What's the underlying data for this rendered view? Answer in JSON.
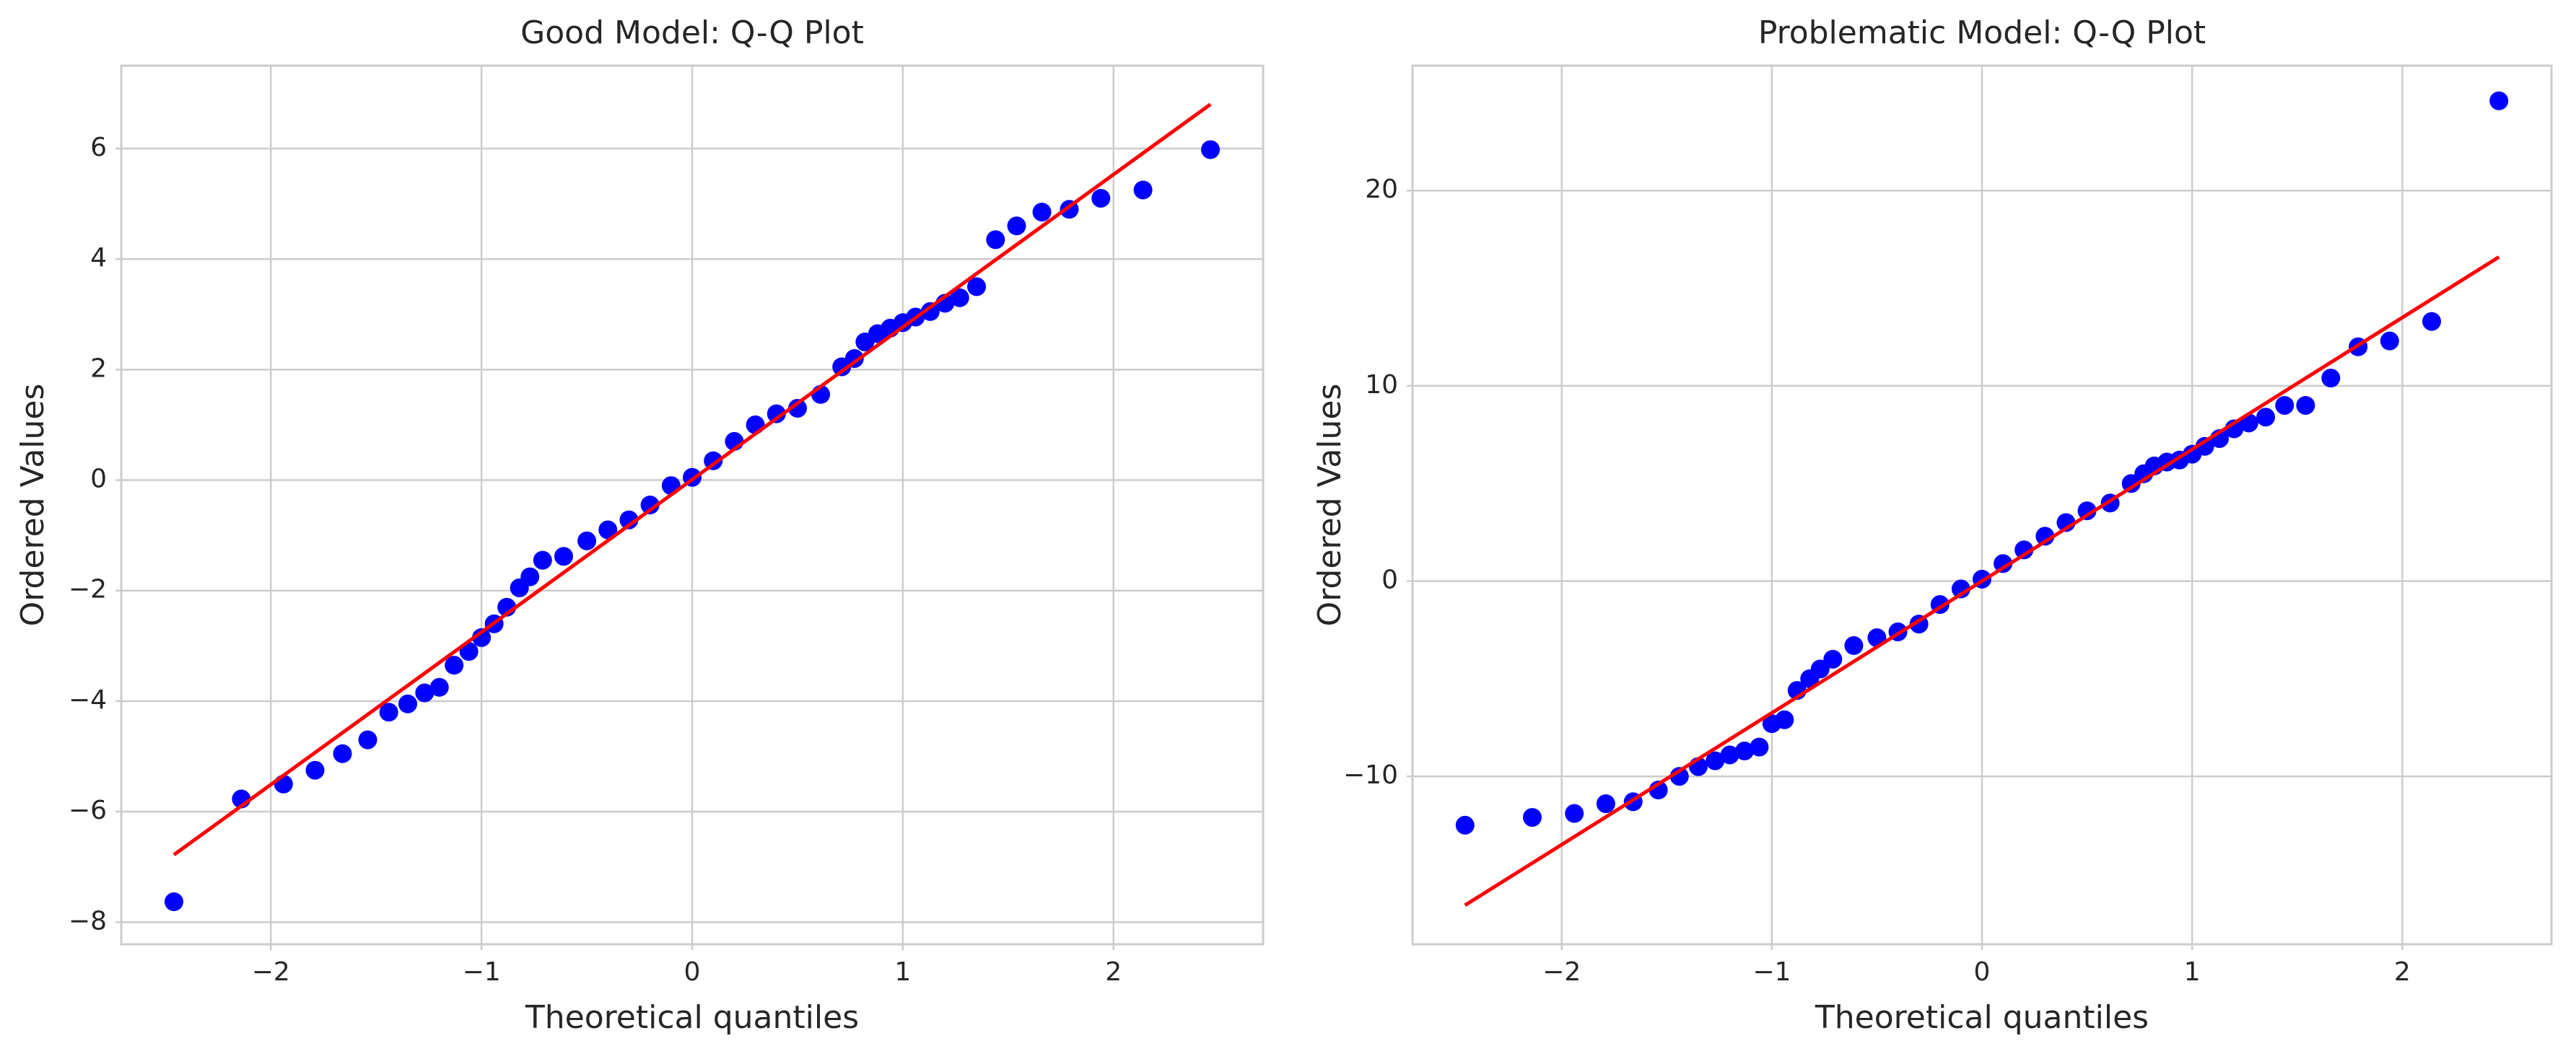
{
  "chart_data": [
    {
      "type": "scatter",
      "title": "Good Model: Q-Q Plot",
      "x_label": "Theoretical quantiles",
      "y_label": "Ordered Values",
      "x": [
        -2.46,
        -2.14,
        -1.94,
        -1.79,
        -1.66,
        -1.54,
        -1.44,
        -1.35,
        -1.27,
        -1.2,
        -1.13,
        -1.06,
        -1.0,
        -0.94,
        -0.88,
        -0.82,
        -0.77,
        -0.71,
        -0.61,
        -0.5,
        -0.4,
        -0.3,
        -0.2,
        -0.1,
        0,
        0.1,
        0.2,
        0.3,
        0.4,
        0.5,
        0.61,
        0.71,
        0.77,
        0.82,
        0.88,
        0.94,
        1.0,
        1.06,
        1.13,
        1.2,
        1.27,
        1.35,
        1.44,
        1.54,
        1.66,
        1.79,
        1.94,
        2.14,
        2.46
      ],
      "points": {
        "color": "#0000ff",
        "values": [
          -7.63,
          -5.77,
          -5.5,
          -5.25,
          -4.95,
          -4.7,
          -4.2,
          -4.05,
          -3.85,
          -3.75,
          -3.35,
          -3.1,
          -2.85,
          -2.6,
          -2.3,
          -1.95,
          -1.75,
          -1.45,
          -1.38,
          -1.1,
          -0.9,
          -0.72,
          -0.45,
          -0.1,
          0.05,
          0.35,
          0.7,
          1.0,
          1.2,
          1.3,
          1.55,
          2.05,
          2.2,
          2.5,
          2.65,
          2.75,
          2.85,
          2.95,
          3.05,
          3.2,
          3.3,
          3.5,
          4.35,
          4.6,
          4.85,
          4.9,
          5.1,
          5.25,
          5.98
        ]
      },
      "fit_line": {
        "color": "#ff0000",
        "x": [
          -2.46,
          2.46
        ],
        "values": [
          -6.78,
          6.8
        ]
      },
      "xlim": [
        -2.71,
        2.71
      ],
      "ylim": [
        -8.4,
        7.5
      ],
      "xticks": [
        {
          "value": -2,
          "label": "−2"
        },
        {
          "value": -1,
          "label": "−1"
        },
        0,
        1,
        2
      ],
      "yticks": [
        {
          "value": -8,
          "label": "−8"
        },
        {
          "value": -6,
          "label": "−6"
        },
        {
          "value": -4,
          "label": "−4"
        },
        {
          "value": -2,
          "label": "−2"
        },
        0,
        2,
        4,
        6
      ],
      "grid": true
    },
    {
      "type": "scatter",
      "title": "Problematic Model: Q-Q Plot",
      "x_label": "Theoretical quantiles",
      "y_label": "Ordered Values",
      "x": [
        -2.46,
        -2.14,
        -1.94,
        -1.79,
        -1.66,
        -1.54,
        -1.44,
        -1.35,
        -1.27,
        -1.2,
        -1.13,
        -1.06,
        -1.0,
        -0.94,
        -0.88,
        -0.82,
        -0.77,
        -0.71,
        -0.61,
        -0.5,
        -0.4,
        -0.3,
        -0.2,
        -0.1,
        0,
        0.1,
        0.2,
        0.3,
        0.4,
        0.5,
        0.61,
        0.71,
        0.77,
        0.82,
        0.88,
        0.94,
        1.0,
        1.06,
        1.13,
        1.2,
        1.27,
        1.35,
        1.44,
        1.54,
        1.66,
        1.79,
        1.94,
        2.14,
        2.46
      ],
      "points": {
        "color": "#0000ff",
        "values": [
          -12.5,
          -12.1,
          -11.9,
          -11.4,
          -11.3,
          -10.7,
          -10,
          -9.5,
          -9.2,
          -8.9,
          -8.7,
          -8.5,
          -7.3,
          -7.1,
          -5.6,
          -5.0,
          -4.5,
          -4.0,
          -3.3,
          -2.9,
          -2.6,
          -2.2,
          -1.2,
          -0.4,
          0.1,
          0.9,
          1.6,
          2.3,
          3.0,
          3.6,
          4.0,
          5.0,
          5.5,
          5.9,
          6.1,
          6.2,
          6.5,
          6.9,
          7.3,
          7.8,
          8.1,
          8.4,
          9.0,
          9.0,
          10.4,
          12.0,
          12.3,
          13.3,
          24.6
        ]
      },
      "fit_line": {
        "color": "#ff0000",
        "x": [
          -2.46,
          2.46
        ],
        "values": [
          -16.6,
          16.6
        ]
      },
      "xlim": [
        -2.71,
        2.71
      ],
      "ylim": [
        -18.6,
        26.4
      ],
      "xticks": [
        {
          "value": -2,
          "label": "−2"
        },
        {
          "value": -1,
          "label": "−1"
        },
        0,
        1,
        2
      ],
      "yticks": [
        {
          "value": -10,
          "label": "−10"
        },
        0,
        10,
        20
      ],
      "grid": true
    }
  ]
}
